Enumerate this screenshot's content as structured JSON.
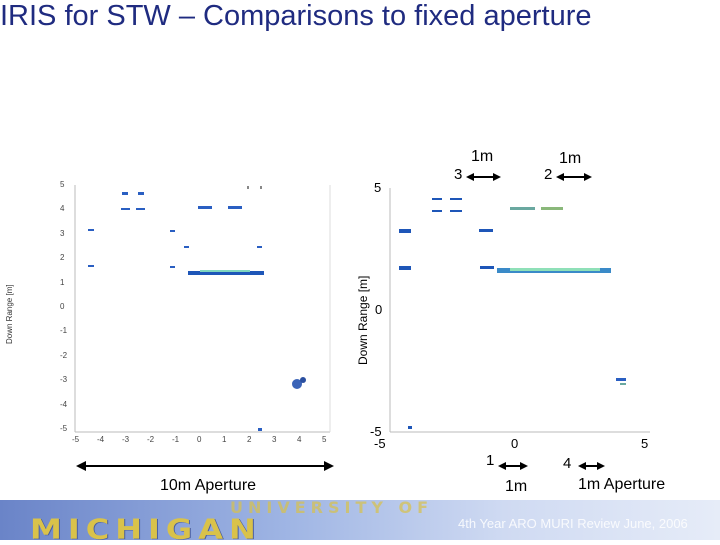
{
  "title": "IRIS for STW – Comparisons to fixed aperture",
  "left_plot": {
    "ylabel": "Down Range [m]",
    "yticks": [
      "5",
      "4",
      "3",
      "2",
      "1",
      "0",
      "-1",
      "-2",
      "-3",
      "-4",
      "-5"
    ],
    "xticks": [
      "-5",
      "-4",
      "-3",
      "-2",
      "-1",
      "0",
      "1",
      "2",
      "3",
      "4",
      "5"
    ],
    "aperture_label": "10m Aperture"
  },
  "right_plot": {
    "ylabel": "Down Range [m]",
    "ytick_top": "5",
    "ytick_mid": "0",
    "ytick_bottom": "-5",
    "xtick_left": "-5",
    "xtick_mid": "0",
    "xtick_right": "5"
  },
  "annotations": {
    "marker_3": "3",
    "marker_2": "2",
    "marker_1": "1",
    "marker_4": "4",
    "span_top_a": "1m",
    "span_top_b": "1m",
    "span_bottom": "1m",
    "aperture_label": "1m Aperture"
  },
  "footer": {
    "logo_text": "MICHIGAN",
    "logo_top": "UNIVERSITY OF",
    "note": "4th Year ARO MURI Review June, 2006"
  },
  "colors": {
    "title": "#1f2b80",
    "target": "#1e56b8",
    "highlight": "#7fd6c0"
  }
}
